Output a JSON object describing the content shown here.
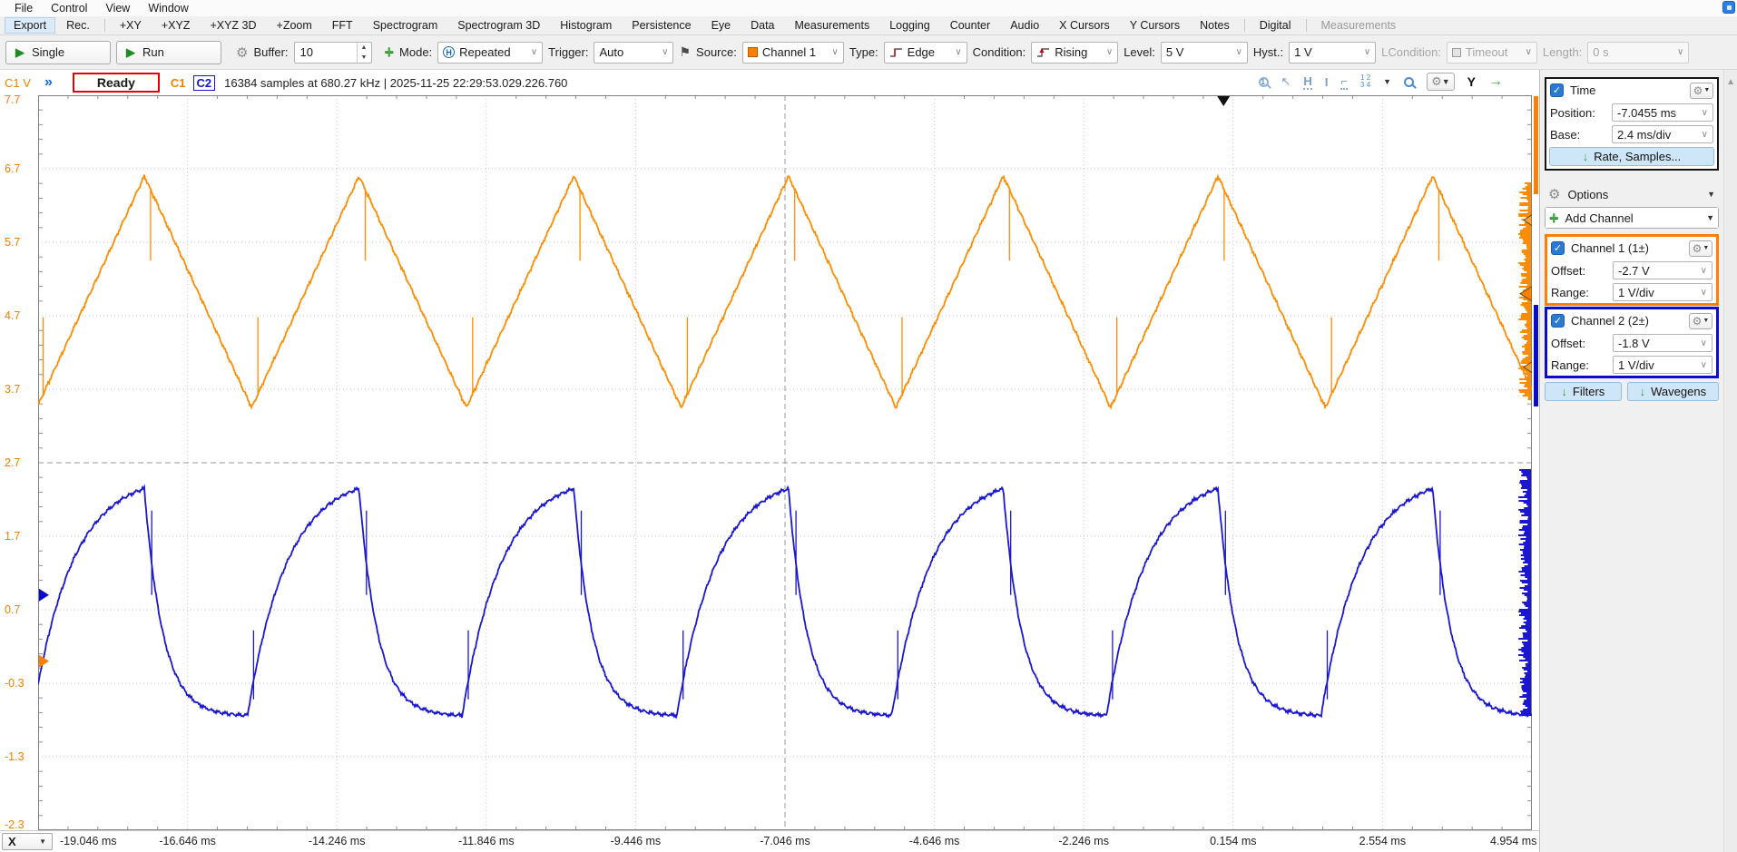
{
  "menubar": {
    "items": [
      "File",
      "Control",
      "View",
      "Window"
    ]
  },
  "tabbar": {
    "items": [
      {
        "label": "Export",
        "hl": true
      },
      {
        "label": "Rec."
      },
      {
        "sep": true
      },
      {
        "label": "+XY"
      },
      {
        "label": "+XYZ"
      },
      {
        "label": "+XYZ 3D"
      },
      {
        "label": "+Zoom"
      },
      {
        "label": "FFT"
      },
      {
        "label": "Spectrogram"
      },
      {
        "label": "Spectrogram 3D"
      },
      {
        "label": "Histogram"
      },
      {
        "label": "Persistence"
      },
      {
        "label": "Eye"
      },
      {
        "label": "Data"
      },
      {
        "label": "Measurements"
      },
      {
        "label": "Logging"
      },
      {
        "label": "Counter"
      },
      {
        "label": "Audio"
      },
      {
        "label": "X Cursors"
      },
      {
        "label": "Y Cursors"
      },
      {
        "label": "Notes"
      },
      {
        "sep": true
      },
      {
        "label": "Digital"
      },
      {
        "sep": true
      },
      {
        "label": "Measurements",
        "dim": true
      }
    ]
  },
  "toolbar": {
    "single_label": "Single",
    "run_label": "Run",
    "buffer_label": "Buffer:",
    "buffer_value": "10",
    "mode_label": "Mode:",
    "mode_value": "Repeated",
    "trigger_label": "Trigger:",
    "trigger_value": "Auto",
    "source_label": "Source:",
    "source_value": "Channel 1",
    "type_label": "Type:",
    "type_value": "Edge",
    "condition_label": "Condition:",
    "condition_value": "Rising",
    "level_label": "Level:",
    "level_value": "5 V",
    "hyst_label": "Hyst.:",
    "hyst_value": "1 V",
    "lcondition_label": "LCondition:",
    "lcondition_value": "Timeout",
    "length_label": "Length:",
    "length_value": "0 s"
  },
  "statusbar": {
    "axis_indicator": "C1 V",
    "ready": "Ready",
    "c1": "C1",
    "c2": "C2",
    "info": "16384 samples at 680.27 kHz  | 2025-11-25 22:29:53.029.226.760",
    "y_button": "Y"
  },
  "xbar": {
    "button": "X"
  },
  "panel": {
    "time": {
      "title": "Time",
      "position_label": "Position:",
      "position_value": "-7.0455 ms",
      "base_label": "Base:",
      "base_value": "2.4 ms/div",
      "rate_button": "Rate, Samples..."
    },
    "options_label": "Options",
    "add_channel_label": "Add Channel",
    "channel1": {
      "title": "Channel 1 (1±)",
      "offset_label": "Offset:",
      "offset_value": "-2.7 V",
      "range_label": "Range:",
      "range_value": "1 V/div",
      "color": "#ff8000"
    },
    "channel2": {
      "title": "Channel 2 (2±)",
      "offset_label": "Offset:",
      "offset_value": "-1.8 V",
      "range_label": "Range:",
      "range_value": "1 V/div",
      "color": "#0b0bd0"
    },
    "filters_button": "Filters",
    "wavegens_button": "Wavegens"
  },
  "chart_data": {
    "type": "line",
    "title": "Oscilloscope time-domain view",
    "x_unit": "ms",
    "x_range": [
      -19.046,
      4.954
    ],
    "x_divisions": 10,
    "time_base": "2.4 ms/div",
    "y_unit": "V (C1 axis)",
    "y_range": [
      -2.3,
      7.7
    ],
    "y_divisions": 10,
    "x_tick_labels": [
      "-19.046 ms",
      "-16.646 ms",
      "-14.246 ms",
      "-11.846 ms",
      "-9.446 ms",
      "-7.046 ms",
      "-4.646 ms",
      "-2.246 ms",
      "0.154 ms",
      "2.554 ms",
      "4.954 ms"
    ],
    "y_tick_labels": [
      "7.7",
      "6.7",
      "5.7",
      "4.7",
      "3.7",
      "2.7",
      "1.7",
      "0.7",
      "-0.3",
      "-1.3",
      "-2.3"
    ],
    "grid": "dotted, center cross dashed",
    "series": [
      {
        "name": "Channel 1",
        "color": "#ff8c00",
        "shape": "triangle",
        "period_ms": 3.45,
        "first_peak_t_ms": -17.34,
        "max_v": 6.6,
        "min_v": 3.45,
        "glitch_below_peak_v": [
          5.45,
          6.42
        ],
        "glitch_above_trough_v": [
          3.62,
          4.68
        ]
      },
      {
        "name": "Channel 2",
        "color": "#1a16d1",
        "shape": "exp_sawtooth",
        "period_ms": 3.45,
        "first_peak_t_ms": -17.34,
        "max_v": 2.35,
        "min_v": -0.75,
        "fall_fraction": 0.48,
        "glitch_below_peak_v": [
          0.9,
          2.05
        ],
        "glitch_above_trough_v": [
          -0.52,
          0.42
        ]
      }
    ],
    "trigger": {
      "level_v": 5,
      "hysteresis_v": 1,
      "t0_ms": 0,
      "right_edge_marker_levels_v": [
        6,
        5,
        4
      ]
    },
    "ground_markers": {
      "channel1_axis_v": 0.0,
      "channel2_axis_v": 0.9
    }
  },
  "icons": {
    "play": "▶",
    "gear": "⚙",
    "plus": "+",
    "chevron": "∨",
    "spin_up": "▲",
    "spin_down": "▼",
    "flag": "⚑",
    "mode_circle_letter": "H",
    "status_chevrons": "»",
    "pointer": "↖",
    "measure_h": "H",
    "measure_v": "I",
    "measure_edge": "⌐",
    "channel_numbers": "1 2\n3 4",
    "caret_down": "▼",
    "pan_arrow": "→",
    "scroll_up": "▲",
    "down_arrow": "↓",
    "check": "✓"
  }
}
